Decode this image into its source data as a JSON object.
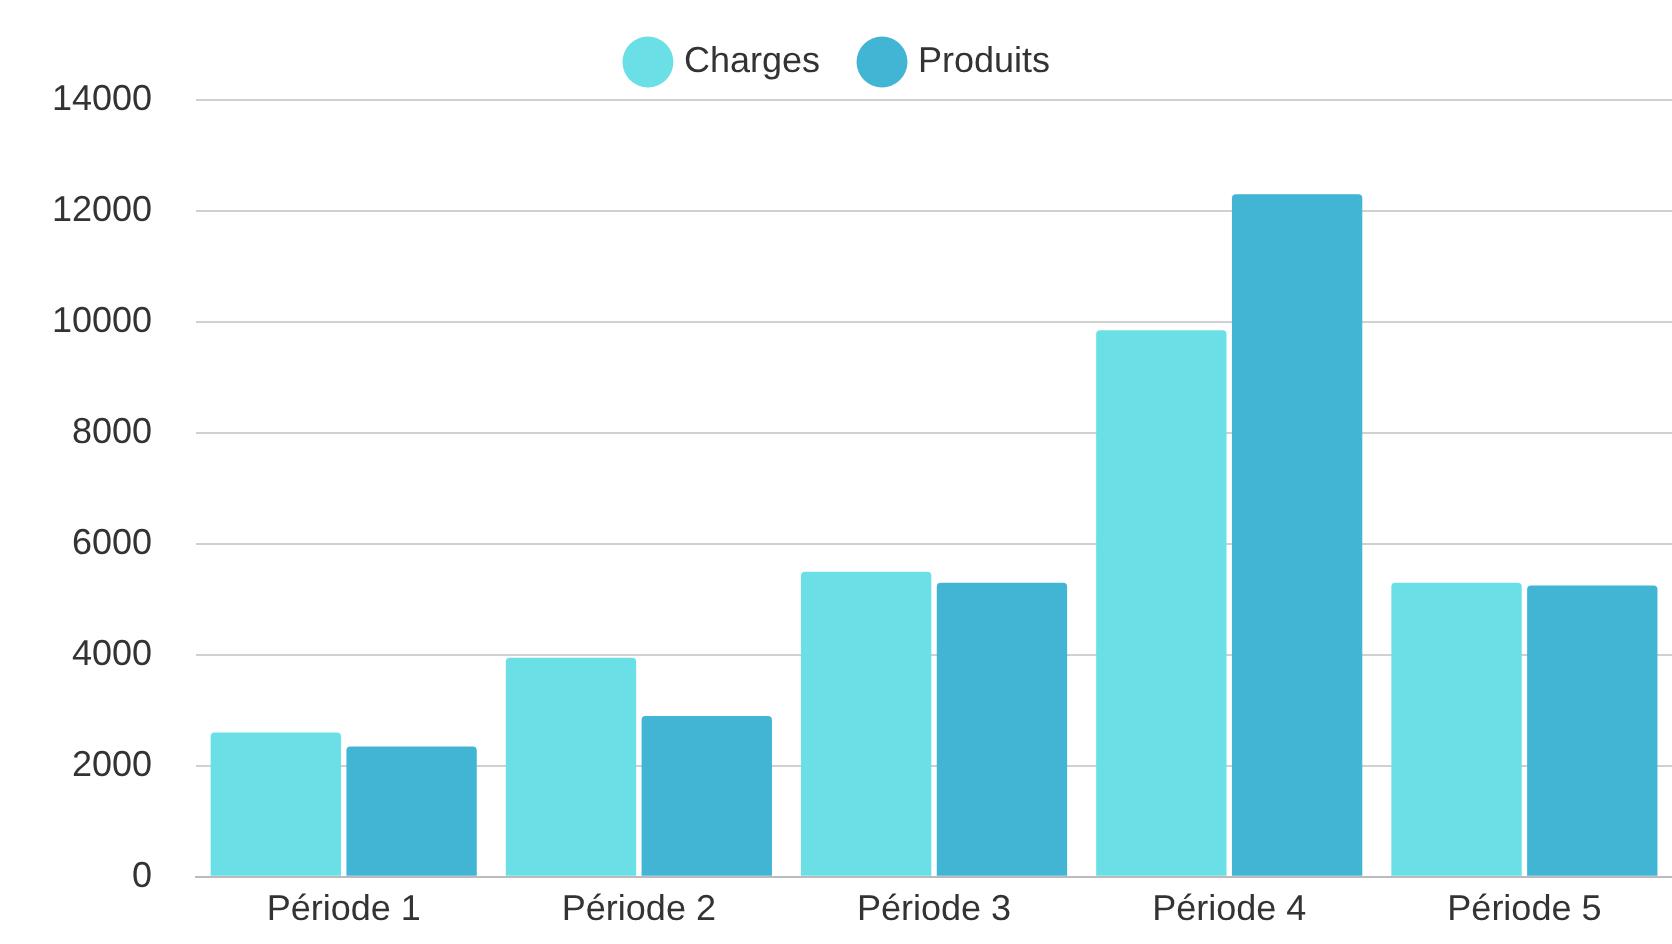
{
  "chart_data": {
    "type": "bar",
    "categories": [
      "Période 1",
      "Période 2",
      "Période 3",
      "Période 4",
      "Période 5"
    ],
    "series": [
      {
        "name": "Charges",
        "color": "#6ae0e6",
        "values": [
          2600,
          3950,
          5500,
          9850,
          5300
        ]
      },
      {
        "name": "Produits",
        "color": "#42b4d4",
        "values": [
          2350,
          2900,
          5300,
          12300,
          5250
        ]
      }
    ],
    "ylim": [
      0,
      14000
    ],
    "yticks": [
      0,
      2000,
      4000,
      6000,
      8000,
      10000,
      12000,
      14000
    ],
    "grid": "y",
    "legend": "top"
  }
}
